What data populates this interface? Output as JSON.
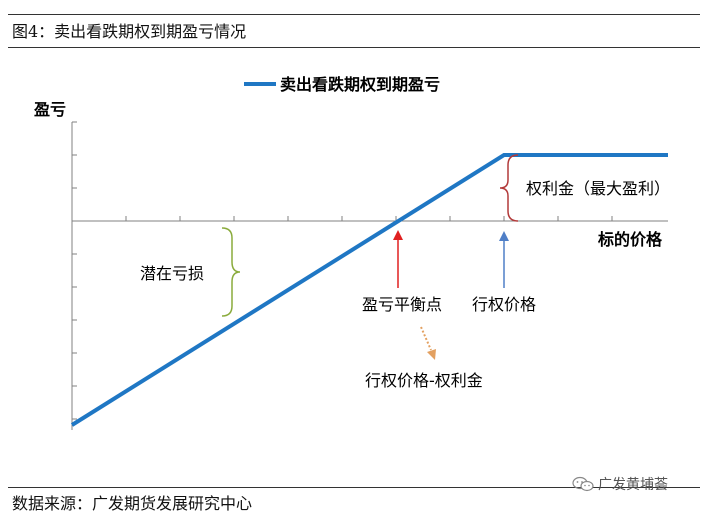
{
  "figure": {
    "title": "图4：卖出看跌期权到期盈亏情况",
    "source": "数据来源：广发期货发展研究中心",
    "watermark": "广发黄埔荟"
  },
  "diagram": {
    "legend_label": "卖出看跌期权到期盈亏",
    "y_axis_label": "盈亏",
    "x_axis_label": "标的价格",
    "annotations": {
      "max_profit": "权利金（最大盈利）",
      "potential_loss": "潜在亏损",
      "breakeven": "盈亏平衡点",
      "strike": "行权价格",
      "breakeven_formula": "行权价格-权利金"
    },
    "colors": {
      "payoff_line": "#1f77c4",
      "brace_green": "#8aab3c",
      "brace_red": "#b23a3a",
      "arrow_red": "#e02020",
      "arrow_blue": "#4f7fc7",
      "arrow_orange": "#e3a060",
      "axis": "#808080"
    }
  }
}
